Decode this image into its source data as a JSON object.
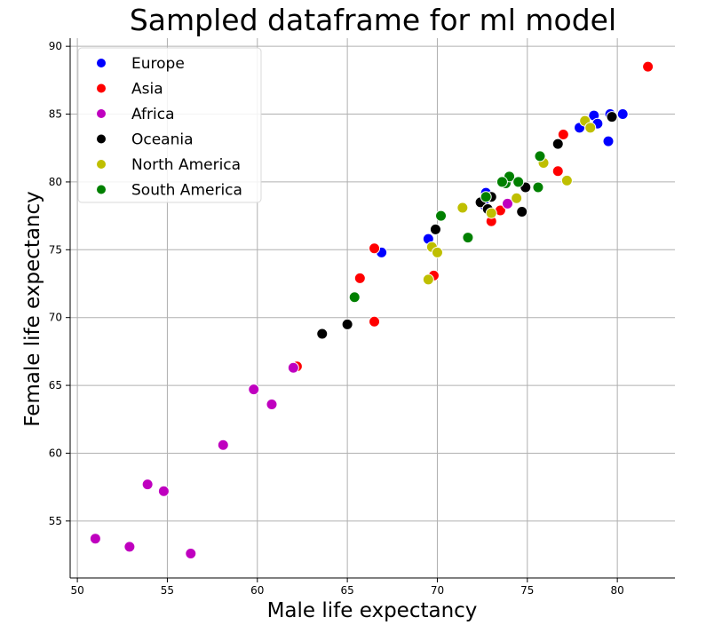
{
  "chart_data": {
    "type": "scatter",
    "title": "Sampled dataframe for ml model",
    "xlabel": "Male life expectancy",
    "ylabel": "Female life expectancy",
    "xlim": [
      49.6,
      83.2
    ],
    "ylim": [
      50.8,
      90.6
    ],
    "xticks": [
      50,
      55,
      60,
      65,
      70,
      75,
      80
    ],
    "yticks": [
      55,
      60,
      65,
      70,
      75,
      80,
      85,
      90
    ],
    "grid": true,
    "legend_position": "top-left",
    "series": [
      {
        "name": "Europe",
        "color": "#0000ff",
        "points": [
          [
            66.9,
            74.8
          ],
          [
            69.5,
            75.8
          ],
          [
            72.7,
            79.2
          ],
          [
            77.9,
            84.0
          ],
          [
            78.7,
            84.9
          ],
          [
            78.9,
            84.3
          ],
          [
            79.5,
            83.0
          ],
          [
            79.6,
            85.0
          ],
          [
            80.3,
            85.0
          ],
          [
            72.6,
            78.3
          ]
        ]
      },
      {
        "name": "Asia",
        "color": "#ff0000",
        "points": [
          [
            62.2,
            66.4
          ],
          [
            65.7,
            72.9
          ],
          [
            66.5,
            75.1
          ],
          [
            66.5,
            69.7
          ],
          [
            69.8,
            73.1
          ],
          [
            73.0,
            77.1
          ],
          [
            73.5,
            77.9
          ],
          [
            76.7,
            80.8
          ],
          [
            77.0,
            83.5
          ],
          [
            81.7,
            88.5
          ]
        ]
      },
      {
        "name": "Africa",
        "color": "#bf00bf",
        "points": [
          [
            51.0,
            53.7
          ],
          [
            52.9,
            53.1
          ],
          [
            53.9,
            57.7
          ],
          [
            54.8,
            57.2
          ],
          [
            56.3,
            52.6
          ],
          [
            58.1,
            60.6
          ],
          [
            59.8,
            64.7
          ],
          [
            60.8,
            63.6
          ],
          [
            62.0,
            66.3
          ],
          [
            73.9,
            78.4
          ]
        ]
      },
      {
        "name": "Oceania",
        "color": "#000000",
        "points": [
          [
            63.6,
            68.8
          ],
          [
            65.0,
            69.5
          ],
          [
            69.9,
            76.5
          ],
          [
            72.4,
            78.5
          ],
          [
            72.8,
            78.0
          ],
          [
            73.0,
            78.9
          ],
          [
            74.7,
            77.8
          ],
          [
            74.9,
            79.6
          ],
          [
            76.7,
            82.8
          ],
          [
            79.7,
            84.8
          ]
        ]
      },
      {
        "name": "North America",
        "color": "#bfbf00",
        "points": [
          [
            69.5,
            72.8
          ],
          [
            69.7,
            75.2
          ],
          [
            70.0,
            74.8
          ],
          [
            71.4,
            78.1
          ],
          [
            73.0,
            77.7
          ],
          [
            74.4,
            78.8
          ],
          [
            75.9,
            81.4
          ],
          [
            77.2,
            80.1
          ],
          [
            78.2,
            84.5
          ],
          [
            78.5,
            84.0
          ]
        ]
      },
      {
        "name": "South America",
        "color": "#008000",
        "points": [
          [
            65.4,
            71.5
          ],
          [
            70.2,
            77.5
          ],
          [
            71.7,
            75.9
          ],
          [
            72.7,
            78.9
          ],
          [
            73.8,
            79.9
          ],
          [
            74.0,
            80.4
          ],
          [
            74.5,
            80.0
          ],
          [
            75.6,
            79.6
          ],
          [
            75.7,
            81.9
          ],
          [
            73.6,
            80.0
          ]
        ]
      }
    ]
  }
}
